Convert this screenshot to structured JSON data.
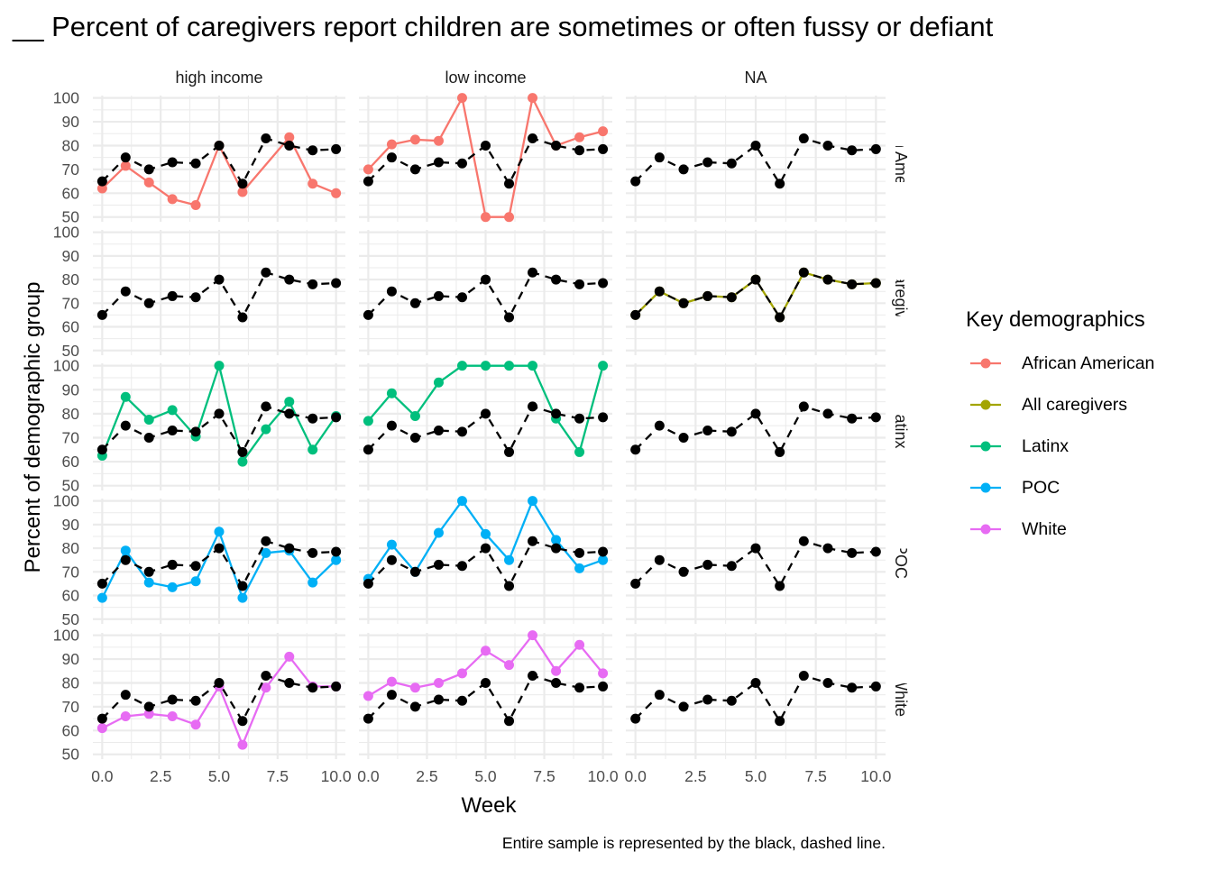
{
  "chart_data": {
    "type": "line",
    "title": "__ Percent of caregivers report children are sometimes or often fussy or defiant",
    "xlabel": "Week",
    "ylabel": "Percent of demographic group",
    "caption": "Entire sample is represented by the black, dashed line.",
    "facet_cols": [
      "high income",
      "low income",
      "NA"
    ],
    "facet_rows": [
      "African American",
      "All caregivers",
      "Latinx",
      "POC",
      "White"
    ],
    "xlim": [
      -0.4,
      10.4
    ],
    "ylim": [
      48,
      101
    ],
    "x_ticks": [
      0,
      2.5,
      5,
      7.5,
      10
    ],
    "x_tick_labels": [
      "0.0",
      "2.5",
      "5.0",
      "7.5",
      "10.0"
    ],
    "y_ticks": [
      50,
      60,
      70,
      80,
      90,
      100
    ],
    "y_tick_labels": [
      "50",
      "60",
      "70",
      "80",
      "90",
      "100"
    ],
    "grid": true,
    "legend": {
      "title": "Key demographics",
      "position": "right",
      "entries": [
        {
          "label": "African American",
          "color": "#F8766D"
        },
        {
          "label": "All caregivers",
          "color": "#A3A500"
        },
        {
          "label": "Latinx",
          "color": "#00BF7D"
        },
        {
          "label": "POC",
          "color": "#00B0F6"
        },
        {
          "label": "White",
          "color": "#E76BF3"
        }
      ]
    },
    "reference": {
      "color": "#000000",
      "x": [
        0,
        1,
        2,
        3,
        4,
        5,
        6,
        7,
        8,
        9,
        10
      ],
      "values": [
        65,
        75,
        70,
        73,
        72.5,
        80,
        64,
        83,
        80,
        78,
        78.5
      ]
    },
    "panels": [
      {
        "row": 0,
        "col": 0,
        "series": "African American",
        "x": [
          0,
          1,
          2,
          3,
          4,
          5,
          6,
          8,
          9,
          10
        ],
        "values": [
          62,
          71.5,
          64.5,
          57.5,
          55,
          80,
          60.5,
          83.5,
          64,
          60
        ]
      },
      {
        "row": 0,
        "col": 1,
        "series": "African American",
        "x": [
          0,
          1,
          2,
          3,
          4,
          5,
          6,
          7,
          8,
          9,
          10
        ],
        "values": [
          70,
          80.5,
          82.5,
          82,
          100,
          50,
          50,
          100,
          80,
          83.5,
          86
        ]
      },
      {
        "row": 1,
        "col": 2,
        "series": "All caregivers",
        "x": [
          0,
          1,
          2,
          3,
          4,
          5,
          6,
          7,
          8,
          9,
          10
        ],
        "values": [
          65,
          75,
          70,
          73,
          72.5,
          80,
          64,
          83,
          80,
          78,
          78.5
        ]
      },
      {
        "row": 2,
        "col": 0,
        "series": "Latinx",
        "x": [
          0,
          1,
          2,
          3,
          4,
          5,
          6,
          7,
          8,
          9,
          10
        ],
        "values": [
          62.5,
          87,
          77.5,
          81.5,
          70.5,
          100,
          60,
          73.5,
          85,
          65,
          79
        ]
      },
      {
        "row": 2,
        "col": 1,
        "series": "Latinx",
        "x": [
          0,
          1,
          2,
          3,
          4,
          5,
          6,
          7,
          8,
          9,
          10
        ],
        "values": [
          77,
          88.5,
          79,
          93,
          100,
          100,
          100,
          100,
          78,
          64,
          100
        ]
      },
      {
        "row": 3,
        "col": 0,
        "series": "POC",
        "x": [
          0,
          1,
          2,
          3,
          4,
          5,
          6,
          7,
          8,
          9,
          10
        ],
        "values": [
          59,
          79,
          65.5,
          63.5,
          66,
          87,
          59,
          78,
          79,
          65.5,
          75
        ]
      },
      {
        "row": 3,
        "col": 1,
        "series": "POC",
        "x": [
          0,
          1,
          2,
          3,
          4,
          5,
          6,
          7,
          8,
          9,
          10
        ],
        "values": [
          67,
          81.5,
          70,
          86.5,
          100,
          86,
          75,
          100,
          83.5,
          71.5,
          75
        ]
      },
      {
        "row": 4,
        "col": 0,
        "series": "White",
        "x": [
          0,
          1,
          2,
          3,
          4,
          5,
          6,
          7,
          8,
          9,
          10
        ],
        "values": [
          61,
          66,
          67,
          66,
          62.5,
          78.5,
          54,
          78,
          91,
          78.5,
          78.5
        ]
      },
      {
        "row": 4,
        "col": 1,
        "series": "White",
        "x": [
          0,
          1,
          2,
          3,
          4,
          5,
          6,
          7,
          8,
          9,
          10
        ],
        "values": [
          74.5,
          80.5,
          78,
          80,
          84,
          93.5,
          87.5,
          100,
          85,
          96,
          84
        ]
      }
    ]
  }
}
